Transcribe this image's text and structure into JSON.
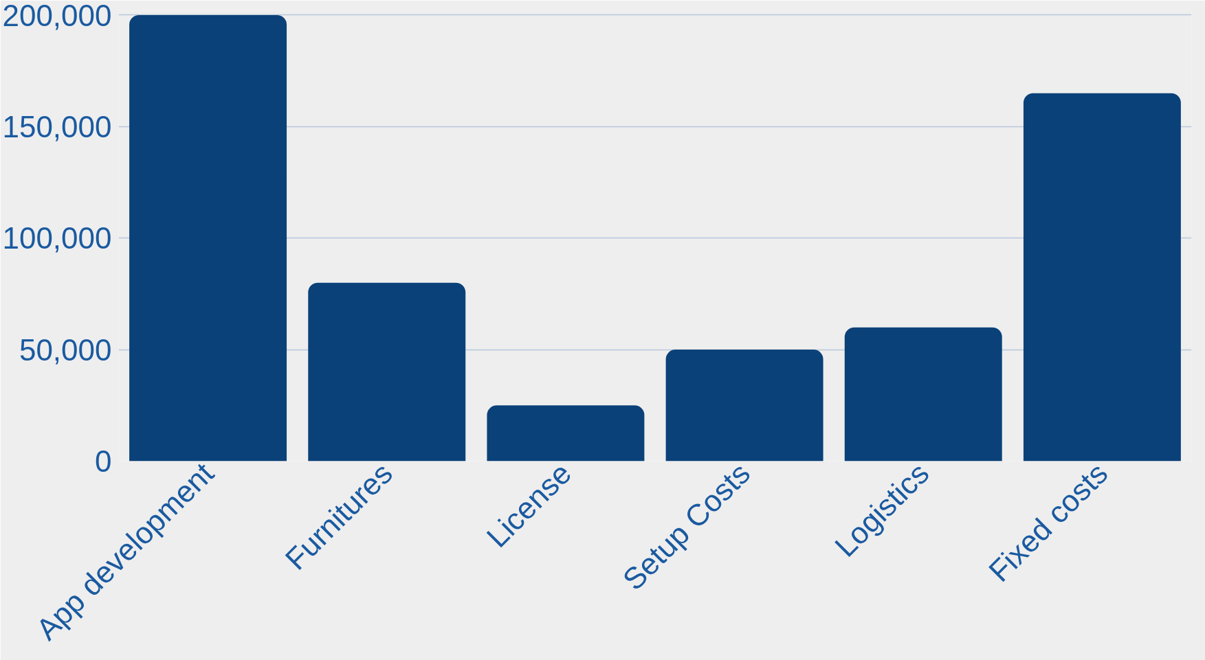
{
  "chart_data": {
    "type": "bar",
    "categories": [
      "App development",
      "Furnitures",
      "License",
      "Setup Costs",
      "Logistics",
      "Fixed costs"
    ],
    "values": [
      200000,
      80000,
      25000,
      50000,
      60000,
      165000
    ],
    "color": "#0b4179",
    "ylim": [
      0,
      200000
    ],
    "yticks": [
      {
        "value": 0,
        "label": "0"
      },
      {
        "value": 50000,
        "label": "50,000"
      },
      {
        "value": 100000,
        "label": "100,000"
      },
      {
        "value": 150000,
        "label": "150,000"
      },
      {
        "value": 200000,
        "label": "200,000"
      }
    ],
    "grid": "y"
  }
}
